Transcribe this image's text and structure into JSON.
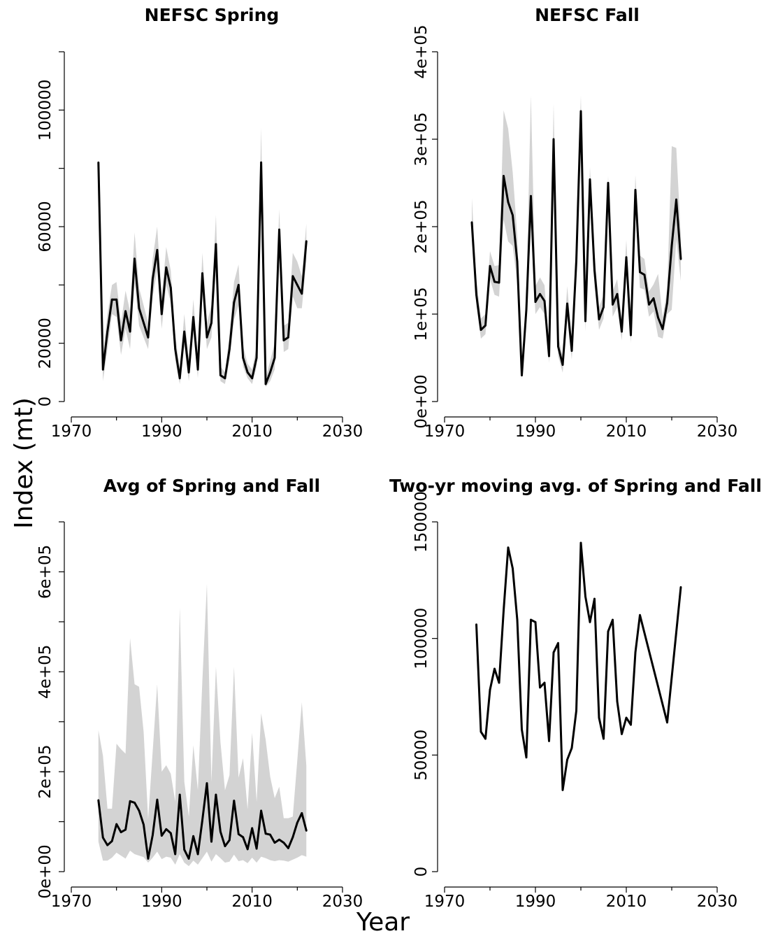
{
  "figure": {
    "ylabel": "Index  (mt)",
    "xlabel": "Year"
  },
  "chart_data": [
    {
      "type": "line",
      "title": "NEFSC Spring",
      "xlim": [
        1970,
        2030
      ],
      "ylim": [
        0,
        120000
      ],
      "xticks": [
        1970,
        1990,
        2010,
        2030
      ],
      "xtick_labels": [
        "1970",
        "1990",
        "2010",
        "2030"
      ],
      "yticks": [
        0,
        20000,
        60000,
        100000
      ],
      "ytick_labels": [
        "0",
        "20000",
        "60000",
        "100000"
      ],
      "yminor": [
        40000,
        80000,
        120000
      ],
      "x": [
        1976,
        1977,
        1978,
        1979,
        1980,
        1981,
        1982,
        1983,
        1984,
        1985,
        1986,
        1987,
        1988,
        1989,
        1990,
        1991,
        1992,
        1993,
        1994,
        1995,
        1996,
        1997,
        1998,
        1999,
        2000,
        2001,
        2002,
        2003,
        2004,
        2005,
        2006,
        2007,
        2008,
        2009,
        2010,
        2011,
        2012,
        2013,
        2014,
        2015,
        2016,
        2017,
        2018,
        2019,
        2020,
        2021,
        2022
      ],
      "y": [
        82000,
        11000,
        24000,
        35000,
        35000,
        21000,
        31000,
        24000,
        49000,
        32000,
        27000,
        22000,
        42000,
        52000,
        30000,
        46000,
        39000,
        18000,
        8000,
        24000,
        10000,
        29000,
        11000,
        44000,
        22000,
        27000,
        54000,
        9000,
        8000,
        18000,
        34000,
        40000,
        15000,
        10000,
        8000,
        15000,
        82000,
        6000,
        10000,
        15000,
        59000,
        21000,
        22000,
        43000,
        40000,
        37000,
        55000
      ],
      "lower": [
        82000,
        7000,
        18000,
        30000,
        29000,
        16000,
        25000,
        18000,
        41000,
        26000,
        22000,
        18000,
        36000,
        45000,
        25000,
        40000,
        34000,
        14000,
        6000,
        19000,
        7000,
        24000,
        8000,
        38000,
        18000,
        22000,
        45000,
        7000,
        6000,
        14000,
        28000,
        33000,
        12000,
        8000,
        6000,
        12000,
        70000,
        5000,
        7000,
        11000,
        52000,
        17000,
        18000,
        36000,
        32000,
        32000,
        48000
      ],
      "upper": [
        82000,
        16000,
        30000,
        40000,
        41000,
        27000,
        38000,
        31000,
        58000,
        39000,
        33000,
        27000,
        49000,
        60000,
        36000,
        53000,
        45000,
        23000,
        11000,
        30000,
        14000,
        35000,
        15000,
        51000,
        27000,
        33000,
        64000,
        12000,
        10000,
        23000,
        41000,
        47000,
        19000,
        13000,
        11000,
        19000,
        94000,
        8000,
        14000,
        20000,
        66000,
        26000,
        27000,
        51000,
        48000,
        43000,
        61000
      ]
    },
    {
      "type": "line",
      "title": "NEFSC Fall",
      "xlim": [
        1970,
        2030
      ],
      "ylim": [
        0,
        400000
      ],
      "xticks": [
        1970,
        1990,
        2010,
        2030
      ],
      "xtick_labels": [
        "1970",
        "1990",
        "2010",
        "2030"
      ],
      "yticks": [
        0,
        100000,
        200000,
        300000,
        400000
      ],
      "ytick_labels": [
        "0e+00",
        "1e+05",
        "2e+05",
        "3e+05",
        "4e+05"
      ],
      "yminor": [],
      "x": [
        1976,
        1977,
        1978,
        1979,
        1980,
        1981,
        1982,
        1983,
        1984,
        1985,
        1986,
        1987,
        1988,
        1989,
        1990,
        1991,
        1992,
        1993,
        1994,
        1995,
        1996,
        1997,
        1998,
        1999,
        2000,
        2001,
        2002,
        2003,
        2004,
        2005,
        2006,
        2007,
        2008,
        2009,
        2010,
        2011,
        2012,
        2013,
        2014,
        2015,
        2016,
        2017,
        2018,
        2019,
        2020,
        2021,
        2022
      ],
      "y": [
        205000,
        122000,
        82000,
        87000,
        155000,
        137000,
        136000,
        258000,
        228000,
        213000,
        160000,
        30000,
        105000,
        235000,
        114000,
        123000,
        115000,
        52000,
        300000,
        63000,
        42000,
        112000,
        58000,
        161000,
        332000,
        92000,
        254000,
        150000,
        94000,
        108000,
        250000,
        111000,
        123000,
        80000,
        165000,
        76000,
        242000,
        148000,
        145000,
        111000,
        118000,
        96000,
        83000,
        113000,
        178000,
        231000,
        163000
      ],
      "lower": [
        190000,
        110000,
        72000,
        77000,
        140000,
        122000,
        120000,
        208000,
        183000,
        178000,
        135000,
        25000,
        90000,
        200000,
        100000,
        108000,
        100000,
        44000,
        265000,
        52000,
        33000,
        95000,
        48000,
        140000,
        305000,
        80000,
        230000,
        132000,
        82000,
        95000,
        230000,
        97000,
        108000,
        70000,
        146000,
        67000,
        220000,
        130000,
        128000,
        97000,
        103000,
        74000,
        72000,
        100000,
        105000,
        185000,
        138000
      ],
      "upper": [
        233000,
        140000,
        95000,
        100000,
        172000,
        155000,
        156000,
        333000,
        312000,
        262000,
        190000,
        38000,
        123000,
        350000,
        132000,
        142000,
        133000,
        62000,
        341000,
        75000,
        52000,
        132000,
        70000,
        187000,
        350000,
        106000,
        268000,
        170000,
        108000,
        122000,
        258000,
        126000,
        140000,
        92000,
        185000,
        87000,
        259000,
        167000,
        163000,
        126000,
        134000,
        146000,
        96000,
        128000,
        292000,
        290000,
        190000
      ]
    },
    {
      "type": "line",
      "title": "Avg of Spring and Fall",
      "xlim": [
        1970,
        2030
      ],
      "ylim": [
        0,
        700000
      ],
      "xticks": [
        1970,
        1990,
        2010,
        2030
      ],
      "xtick_labels": [
        "1970",
        "1990",
        "2010",
        "2030"
      ],
      "yticks": [
        0,
        200000,
        400000,
        600000
      ],
      "ytick_labels": [
        "0e+00",
        "2e+05",
        "4e+05",
        "6e+05"
      ],
      "yminor": [
        100000,
        300000,
        500000,
        700000
      ],
      "x": [
        1976,
        1977,
        1978,
        1979,
        1980,
        1981,
        1982,
        1983,
        1984,
        1985,
        1986,
        1987,
        1988,
        1989,
        1990,
        1991,
        1992,
        1993,
        1994,
        1995,
        1996,
        1997,
        1998,
        1999,
        2000,
        2001,
        2002,
        2003,
        2004,
        2005,
        2006,
        2007,
        2008,
        2009,
        2010,
        2011,
        2012,
        2013,
        2014,
        2015,
        2016,
        2017,
        2018,
        2019,
        2020,
        2021,
        2022
      ],
      "y": [
        143000,
        68000,
        53000,
        61000,
        95000,
        79000,
        84000,
        141000,
        138000,
        122000,
        94000,
        26000,
        73000,
        144000,
        72000,
        85000,
        77000,
        35000,
        154000,
        44000,
        26000,
        71000,
        35000,
        103000,
        177000,
        60000,
        154000,
        80000,
        51000,
        63000,
        142000,
        75000,
        69000,
        45000,
        87000,
        46000,
        122000,
        76000,
        74000,
        58000,
        64000,
        58000,
        47000,
        69000,
        98000,
        117000,
        82000
      ],
      "lower": [
        60000,
        22000,
        22000,
        28000,
        38000,
        32000,
        26000,
        42000,
        35000,
        32000,
        29000,
        18000,
        28000,
        40000,
        25000,
        30000,
        28000,
        14000,
        35000,
        18000,
        11000,
        22000,
        14000,
        27000,
        40000,
        20000,
        35000,
        27000,
        18000,
        20000,
        34000,
        21000,
        23000,
        17000,
        28000,
        18000,
        30000,
        27000,
        23000,
        21000,
        23000,
        22000,
        20000,
        24000,
        28000,
        33000,
        30000
      ],
      "upper": [
        283000,
        232000,
        126000,
        126000,
        256000,
        245000,
        236000,
        467000,
        375000,
        370000,
        280000,
        105000,
        240000,
        375000,
        200000,
        213000,
        196000,
        140000,
        528000,
        180000,
        110000,
        253000,
        163000,
        383000,
        576000,
        179000,
        410000,
        259000,
        163000,
        193000,
        410000,
        188000,
        227000,
        125000,
        278000,
        140000,
        317000,
        264000,
        190000,
        147000,
        170000,
        107000,
        107000,
        110000,
        223000,
        339000,
        212000
      ]
    },
    {
      "type": "line",
      "title": "Two-yr moving avg. of Spring and Fall",
      "xlim": [
        1970,
        2030
      ],
      "ylim": [
        0,
        150000
      ],
      "xticks": [
        1970,
        1990,
        2010,
        2030
      ],
      "xtick_labels": [
        "1970",
        "1990",
        "2010",
        "2030"
      ],
      "yticks": [
        0,
        50000,
        100000,
        150000
      ],
      "ytick_labels": [
        "0",
        "50000",
        "100000",
        "150000"
      ],
      "yminor": [],
      "x": [
        1977,
        1978,
        1979,
        1980,
        1981,
        1982,
        1983,
        1984,
        1985,
        1986,
        1987,
        1988,
        1989,
        1990,
        1991,
        1992,
        1993,
        1994,
        1995,
        1996,
        1997,
        1998,
        1999,
        2000,
        2001,
        2002,
        2003,
        2004,
        2005,
        2006,
        2007,
        2008,
        2009,
        2010,
        2011,
        2012,
        2013,
        2019,
        2022
      ],
      "y": [
        106000,
        60000,
        57000,
        78000,
        87000,
        81000,
        112000,
        139000,
        130000,
        108000,
        61000,
        49000,
        108000,
        107000,
        79000,
        81000,
        56000,
        94000,
        98000,
        35000,
        48000,
        53000,
        69000,
        141000,
        118000,
        107000,
        117000,
        66000,
        57000,
        103000,
        108000,
        73000,
        59000,
        66000,
        63000,
        94000,
        110000,
        64000,
        122000
      ]
    }
  ]
}
